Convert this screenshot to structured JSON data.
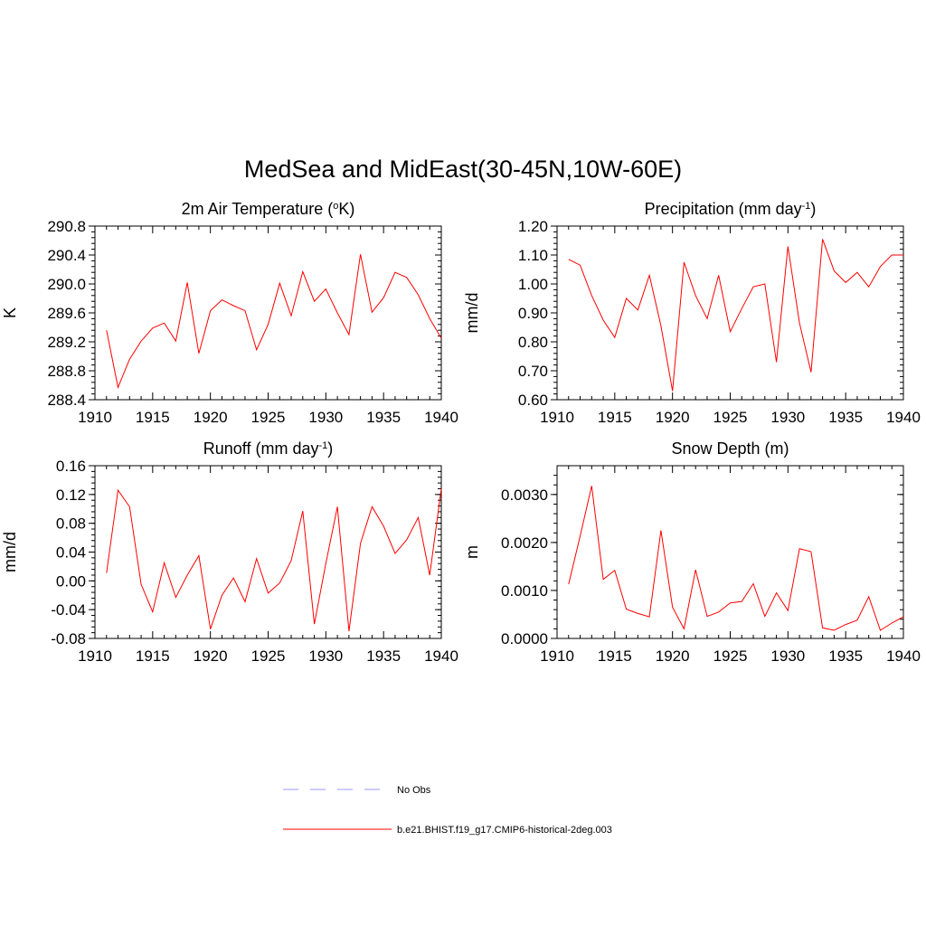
{
  "figure": {
    "title": "MedSea and MidEast(30-45N,10W-60E)",
    "colors": {
      "model": "#ff0000",
      "obs": "#9999ff",
      "axes": "#000000",
      "background": "#ffffff"
    }
  },
  "legend": {
    "entries": [
      {
        "label": "No Obs",
        "style": "dashed",
        "color": "#9999ff"
      },
      {
        "label": "b.e21.BHIST.f19_g17.CMIP6-historical-2deg.003",
        "style": "solid",
        "color": "#ff0000"
      }
    ]
  },
  "chart_data": [
    {
      "type": "line",
      "title": "2m Air Temperature (oK)",
      "title_parts": [
        "2m Air Temperature (",
        "o",
        "K)"
      ],
      "title_script": "sup",
      "ylabel": "K",
      "xlim": [
        1910,
        1940
      ],
      "ylim": [
        288.4,
        290.8
      ],
      "xticks": [
        1910,
        1915,
        1920,
        1925,
        1930,
        1935,
        1940
      ],
      "xtick_labels": [
        "1910",
        "1915",
        "1920",
        "1925",
        "1930",
        "1935",
        "1940"
      ],
      "yticks": [
        288.4,
        288.8,
        289.2,
        289.6,
        290.0,
        290.4,
        290.8
      ],
      "ytick_labels": [
        "288.4",
        "288.8",
        "289.2",
        "289.6",
        "290.0",
        "290.4",
        "290.8"
      ],
      "yminor_step": 0.08,
      "x": [
        1911,
        1912,
        1913,
        1914,
        1915,
        1916,
        1917,
        1918,
        1919,
        1920,
        1921,
        1922,
        1923,
        1924,
        1925,
        1926,
        1927,
        1928,
        1929,
        1930,
        1931,
        1932,
        1933,
        1934,
        1935,
        1936,
        1937,
        1938,
        1939,
        1940
      ],
      "series": [
        {
          "name": "b.e21.BHIST.f19_g17.CMIP6-historical-2deg.003",
          "values": [
            289.36,
            288.57,
            288.96,
            289.21,
            289.39,
            289.46,
            289.21,
            290.02,
            289.04,
            289.63,
            289.78,
            289.7,
            289.63,
            289.09,
            289.44,
            290.01,
            289.56,
            290.17,
            289.76,
            289.93,
            289.6,
            289.3,
            290.41,
            289.61,
            289.81,
            290.16,
            290.09,
            289.85,
            289.52,
            289.25
          ]
        }
      ],
      "grid": false
    },
    {
      "type": "line",
      "title": "Precipitation (mm day-1)",
      "title_parts": [
        "Precipitation (mm day",
        "-1",
        ")"
      ],
      "title_script": "sup",
      "ylabel": "mm/d",
      "xlim": [
        1910,
        1940
      ],
      "ylim": [
        0.6,
        1.2
      ],
      "xticks": [
        1910,
        1915,
        1920,
        1925,
        1930,
        1935,
        1940
      ],
      "xtick_labels": [
        "1910",
        "1915",
        "1920",
        "1925",
        "1930",
        "1935",
        "1940"
      ],
      "yticks": [
        0.6,
        0.7,
        0.8,
        0.9,
        1.0,
        1.1,
        1.2
      ],
      "ytick_labels": [
        "0.60",
        "0.70",
        "0.80",
        "0.90",
        "1.00",
        "1.10",
        "1.20"
      ],
      "yminor_step": 0.02,
      "x": [
        1911,
        1912,
        1913,
        1914,
        1915,
        1916,
        1917,
        1918,
        1919,
        1920,
        1921,
        1922,
        1923,
        1924,
        1925,
        1926,
        1927,
        1928,
        1929,
        1930,
        1931,
        1932,
        1933,
        1934,
        1935,
        1936,
        1937,
        1938,
        1939,
        1940
      ],
      "series": [
        {
          "name": "b.e21.BHIST.f19_g17.CMIP6-historical-2deg.003",
          "values": [
            1.085,
            1.065,
            0.96,
            0.875,
            0.815,
            0.95,
            0.91,
            1.03,
            0.855,
            0.63,
            1.075,
            0.96,
            0.88,
            1.03,
            0.835,
            0.915,
            0.99,
            1.0,
            0.73,
            1.13,
            0.865,
            0.695,
            1.155,
            1.045,
            1.005,
            1.04,
            0.99,
            1.06,
            1.1,
            1.1
          ]
        }
      ],
      "grid": false
    },
    {
      "type": "line",
      "title": "Runoff (mm day-1)",
      "title_parts": [
        "Runoff (mm day",
        "-1",
        ")"
      ],
      "title_script": "sup",
      "ylabel": "mm/d",
      "xlim": [
        1910,
        1940
      ],
      "ylim": [
        -0.08,
        0.16
      ],
      "xticks": [
        1910,
        1915,
        1920,
        1925,
        1930,
        1935,
        1940
      ],
      "xtick_labels": [
        "1910",
        "1915",
        "1920",
        "1925",
        "1930",
        "1935",
        "1940"
      ],
      "yticks": [
        -0.08,
        -0.04,
        0.0,
        0.04,
        0.08,
        0.12,
        0.16
      ],
      "ytick_labels": [
        "-0.08",
        "-0.04",
        "0.00",
        "0.04",
        "0.08",
        "0.12",
        "0.16"
      ],
      "yminor_step": 0.008,
      "x": [
        1911,
        1912,
        1913,
        1914,
        1915,
        1916,
        1917,
        1918,
        1919,
        1920,
        1921,
        1922,
        1923,
        1924,
        1925,
        1926,
        1927,
        1928,
        1929,
        1930,
        1931,
        1932,
        1933,
        1934,
        1935,
        1936,
        1937,
        1938,
        1939,
        1940
      ],
      "series": [
        {
          "name": "b.e21.BHIST.f19_g17.CMIP6-historical-2deg.003",
          "values": [
            0.011,
            0.126,
            0.103,
            -0.005,
            -0.043,
            0.025,
            -0.023,
            0.008,
            0.035,
            -0.067,
            -0.02,
            0.004,
            -0.029,
            0.031,
            -0.017,
            -0.003,
            0.028,
            0.097,
            -0.06,
            0.024,
            0.103,
            -0.07,
            0.052,
            0.103,
            0.076,
            0.038,
            0.057,
            0.088,
            0.008,
            0.128
          ]
        }
      ],
      "grid": false
    },
    {
      "type": "line",
      "title": "Snow Depth (m)",
      "title_parts": [
        "Snow Depth (m)"
      ],
      "title_script": "none",
      "ylabel": "m",
      "xlim": [
        1910,
        1940
      ],
      "ylim": [
        0.0,
        0.0036
      ],
      "xticks": [
        1910,
        1915,
        1920,
        1925,
        1930,
        1935,
        1940
      ],
      "xtick_labels": [
        "1910",
        "1915",
        "1920",
        "1925",
        "1930",
        "1935",
        "1940"
      ],
      "yticks": [
        0.0,
        0.001,
        0.002,
        0.003
      ],
      "ytick_labels": [
        "0.0000",
        "0.0010",
        "0.0020",
        "0.0030"
      ],
      "yminor_step": 0.0002,
      "x": [
        1911,
        1912,
        1913,
        1914,
        1915,
        1916,
        1917,
        1918,
        1919,
        1920,
        1921,
        1922,
        1923,
        1924,
        1925,
        1926,
        1927,
        1928,
        1929,
        1930,
        1931,
        1932,
        1933,
        1934,
        1935,
        1936,
        1937,
        1938,
        1939,
        1940
      ],
      "series": [
        {
          "name": "b.e21.BHIST.f19_g17.CMIP6-historical-2deg.003",
          "values": [
            0.00113,
            0.00213,
            0.00318,
            0.00123,
            0.00142,
            0.00061,
            0.00052,
            0.00045,
            0.00225,
            0.00065,
            0.0002,
            0.00143,
            0.00046,
            0.00055,
            0.00074,
            0.00077,
            0.00114,
            0.00046,
            0.00095,
            0.00058,
            0.00187,
            0.00181,
            0.00022,
            0.00017,
            0.00029,
            0.00038,
            0.00087,
            0.00017,
            0.00032,
            0.00045
          ]
        }
      ],
      "grid": false
    }
  ]
}
